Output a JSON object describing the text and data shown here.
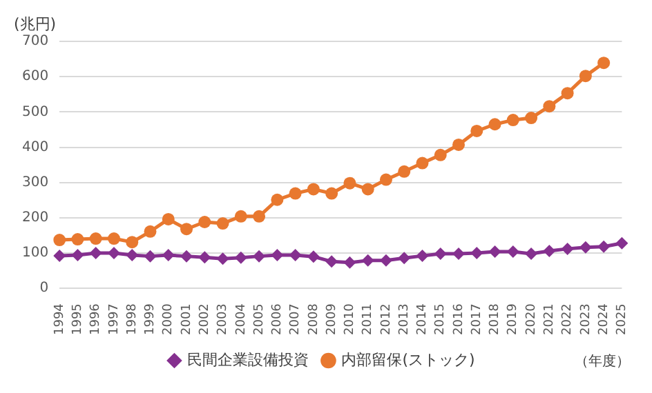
{
  "chart_data": {
    "type": "line",
    "ylabel": "(兆円)",
    "annotations": [
      "（年度）"
    ],
    "categories": [
      "1994",
      "1995",
      "1996",
      "1997",
      "1998",
      "1999",
      "2000",
      "2001",
      "2002",
      "2003",
      "2004",
      "2005",
      "2006",
      "2007",
      "2008",
      "2009",
      "2010",
      "2011",
      "2012",
      "2013",
      "2014",
      "2015",
      "2016",
      "2017",
      "2018",
      "2019",
      "2020",
      "2021",
      "2022",
      "2023",
      "2024",
      "2025"
    ],
    "series": [
      {
        "name": "民間企業設備投資",
        "color": "#85308f",
        "marker": "diamond",
        "values": [
          92,
          94,
          100,
          100,
          94,
          91,
          94,
          91,
          88,
          84,
          87,
          91,
          94,
          94,
          90,
          76,
          73,
          79,
          79,
          86,
          92,
          98,
          98,
          100,
          104,
          104,
          98,
          106,
          112,
          116,
          118,
          128
        ]
      },
      {
        "name": "内部留保(ストック)",
        "color": "#e8782f",
        "marker": "circle",
        "values": [
          137,
          139,
          141,
          141,
          131,
          161,
          196,
          168,
          188,
          184,
          204,
          204,
          251,
          269,
          281,
          269,
          298,
          281,
          308,
          331,
          355,
          378,
          407,
          446,
          465,
          477,
          483,
          516,
          553,
          602,
          639,
          null
        ]
      }
    ],
    "ylim": [
      0,
      700
    ],
    "yticks": [
      0,
      100,
      200,
      300,
      400,
      500,
      600,
      700
    ],
    "grid": "y",
    "legend": "bottom",
    "line_style": "solid"
  }
}
